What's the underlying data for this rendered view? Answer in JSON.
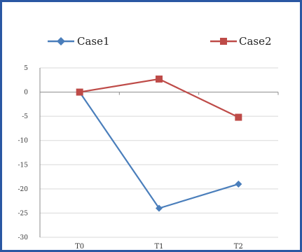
{
  "chart_data": {
    "type": "line",
    "categories": [
      "T0",
      "T1",
      "T2"
    ],
    "series": [
      {
        "name": "Case1",
        "values": [
          0,
          -24,
          -19
        ],
        "color": "#4a7ebb",
        "marker": "diamond"
      },
      {
        "name": "Case2",
        "values": [
          0,
          2.7,
          -5.2
        ],
        "color": "#be4b48",
        "marker": "square"
      }
    ],
    "title": "",
    "xlabel": "",
    "ylabel": "",
    "ylim": [
      -30,
      5
    ],
    "yticks": [
      5,
      0,
      -5,
      -10,
      -15,
      -20,
      -25,
      -30
    ],
    "ytick_labels": [
      "5",
      "0",
      "-5",
      "-10",
      "-15",
      "-20",
      "-25",
      "-30"
    ],
    "grid": true,
    "legend": "top"
  },
  "frame_color": "#2a57a3",
  "grid_color": "#d9d9d9"
}
